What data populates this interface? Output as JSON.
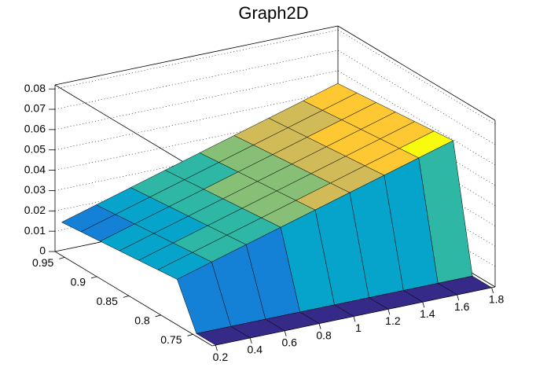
{
  "chart_data": {
    "type": "surface3d",
    "title": "Graph2D",
    "x": [
      0.2,
      0.4,
      0.6,
      0.8,
      1.0,
      1.2,
      1.4,
      1.6,
      1.8
    ],
    "y": [
      0.72,
      0.75,
      0.78,
      0.81,
      0.84,
      0.87,
      0.9,
      0.93,
      0.96
    ],
    "z": [
      [
        0,
        0,
        0,
        0,
        0,
        0,
        0,
        0,
        0
      ],
      [
        0,
        0,
        0,
        0,
        0,
        0,
        0,
        0,
        0
      ],
      [
        0.021,
        0.026,
        0.031,
        0.036,
        0.041,
        0.046,
        0.051,
        0.056,
        0.061
      ],
      [
        0.02,
        0.025,
        0.03,
        0.035,
        0.04,
        0.045,
        0.05,
        0.055,
        0.06
      ],
      [
        0.019,
        0.024,
        0.029,
        0.034,
        0.039,
        0.044,
        0.049,
        0.054,
        0.059
      ],
      [
        0.018,
        0.023,
        0.028,
        0.033,
        0.038,
        0.043,
        0.048,
        0.053,
        0.058
      ],
      [
        0.017,
        0.022,
        0.027,
        0.032,
        0.037,
        0.042,
        0.047,
        0.052,
        0.057
      ],
      [
        0.016,
        0.021,
        0.026,
        0.031,
        0.036,
        0.041,
        0.046,
        0.051,
        0.056
      ],
      [
        0.015,
        0.02,
        0.025,
        0.03,
        0.035,
        0.04,
        0.045,
        0.05,
        0.055
      ]
    ],
    "xlim": [
      0.18,
      1.82
    ],
    "ylim": [
      0.72,
      0.965
    ],
    "zlim": [
      0,
      0.082
    ],
    "xticks": [
      0.2,
      0.4,
      0.6,
      0.8,
      1,
      1.2,
      1.4,
      1.6,
      1.8
    ],
    "yticks": [
      0.75,
      0.8,
      0.85,
      0.9,
      0.95
    ],
    "zticks": [
      0,
      0.01,
      0.02,
      0.03,
      0.04,
      0.05,
      0.06,
      0.07,
      0.08
    ],
    "grid": true,
    "palette": [
      "#352a87",
      "#0f5cdd",
      "#1481d6",
      "#06a4ca",
      "#2eb7a4",
      "#87bf77",
      "#d1bb59",
      "#fec832",
      "#f9fb0e"
    ]
  }
}
